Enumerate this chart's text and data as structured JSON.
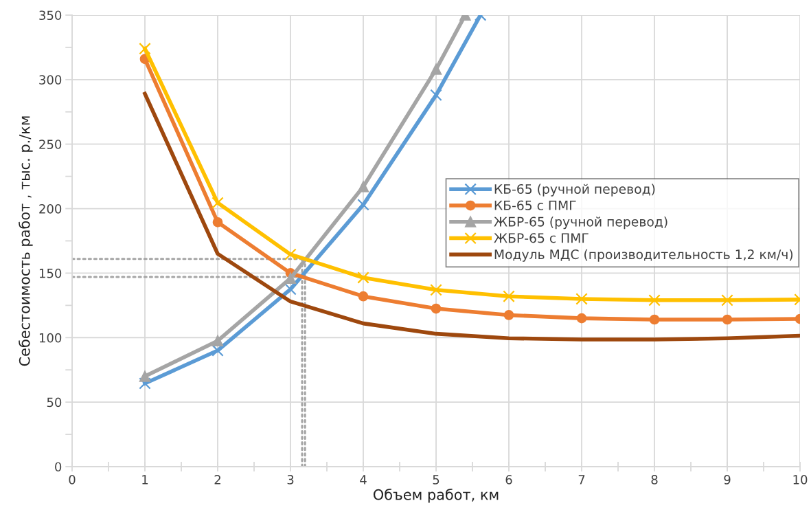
{
  "chart_data": {
    "type": "line",
    "xlabel": "Объем работ, км",
    "ylabel": "Себестоимость работ , тыс. р./км",
    "x": [
      1,
      2,
      3,
      4,
      5,
      6,
      7,
      8,
      9,
      10
    ],
    "series": [
      {
        "name": "КБ-65 (ручной перевод)",
        "color": "#5b9bd5",
        "marker": "cross",
        "x": [
          1,
          2,
          3,
          4,
          5,
          5.61
        ],
        "values": [
          64.5,
          90,
          137.5,
          203,
          288,
          350
        ]
      },
      {
        "name": "КБ-65 с ПМГ",
        "color": "#ed7d31",
        "marker": "circle",
        "values": [
          316,
          189.5,
          150,
          132,
          122.5,
          117.5,
          115,
          114,
          114,
          114.5
        ]
      },
      {
        "name": "ЖБР-65 (ручной перевод)",
        "color": "#a5a5a5",
        "marker": "triangle",
        "x": [
          1,
          2,
          3,
          4,
          5,
          5.4
        ],
        "values": [
          70,
          97.5,
          146,
          217,
          308,
          350
        ]
      },
      {
        "name": "ЖБР-65 с ПМГ",
        "color": "#ffc000",
        "marker": "cross",
        "values": [
          324,
          204.5,
          164.5,
          146.5,
          137,
          132,
          130,
          129,
          129,
          129.5
        ]
      },
      {
        "name": "Модуль МДС (производительность 1,2 км/ч)",
        "color": "#9e480e",
        "marker": "none",
        "values": [
          289,
          165,
          128,
          111,
          103,
          99.5,
          98.5,
          98.5,
          99.5,
          101.5
        ]
      },
      {
        "color": "#a5a5a5",
        "marker": "none",
        "line_style": "dotted",
        "x": [
          0,
          3.2
        ],
        "values": [
          161,
          161
        ]
      },
      {
        "color": "#a5a5a5",
        "marker": "none",
        "line_style": "dotted",
        "x": [
          0,
          3.2
        ],
        "values": [
          147,
          147
        ]
      },
      {
        "color": "#a5a5a5",
        "marker": "none",
        "line_style": "dotted",
        "x": [
          3.16,
          3.16
        ],
        "values": [
          0,
          161
        ]
      },
      {
        "color": "#a5a5a5",
        "marker": "none",
        "line_style": "dotted",
        "x": [
          3.2,
          3.2
        ],
        "values": [
          0,
          161
        ]
      }
    ],
    "xlim": [
      0,
      10
    ],
    "xticks": [
      0,
      {
        "value": 0.5,
        "label": null
      },
      1,
      {
        "value": 1.5,
        "label": null
      },
      2,
      {
        "value": 2.5,
        "label": null
      },
      3,
      {
        "value": 3.5,
        "label": null
      },
      4,
      {
        "value": 4.5,
        "label": null
      },
      5,
      {
        "value": 5.5,
        "label": null
      },
      6,
      {
        "value": 6.5,
        "label": null
      },
      7,
      {
        "value": 7.5,
        "label": null
      },
      8,
      {
        "value": 8.5,
        "label": null
      },
      9,
      {
        "value": 9.5,
        "label": null
      },
      10
    ],
    "ylim": [
      0,
      350
    ],
    "yticks": [
      0,
      {
        "value": 25,
        "label": null
      },
      50,
      {
        "value": 75,
        "label": null
      },
      100,
      {
        "value": 125,
        "label": null
      },
      150,
      {
        "value": 175,
        "label": null
      },
      200,
      {
        "value": 225,
        "label": null
      },
      250,
      {
        "value": 275,
        "label": null
      },
      300,
      {
        "value": 325,
        "label": null
      },
      350
    ],
    "grid": true,
    "legend": "right",
    "line_style": "solid"
  }
}
